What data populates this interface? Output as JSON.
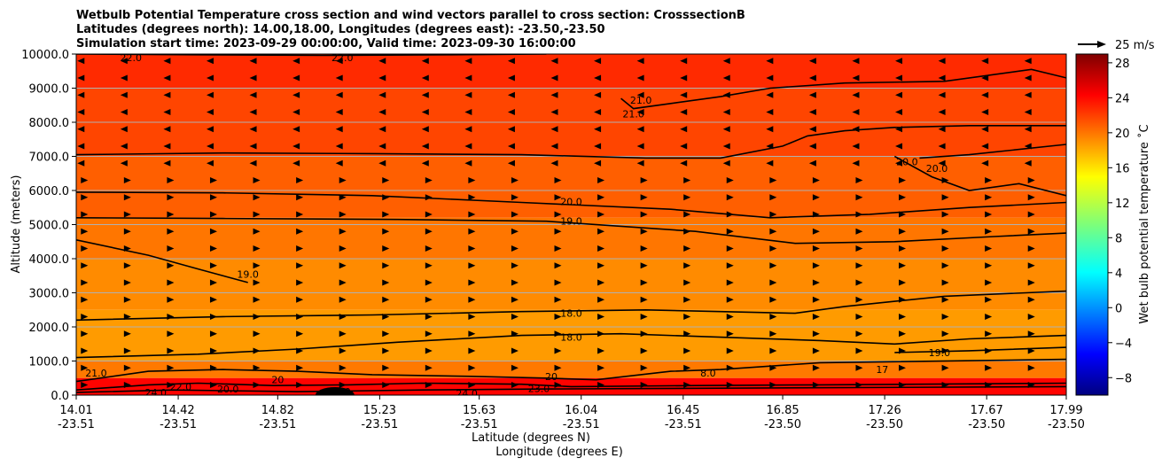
{
  "title": {
    "line1": "Wetbulb Potential Temperature cross section and wind vectors parallel to cross section: CrosssectionB",
    "line2": "Latitudes (degrees north): 14.00,18.00, Longitudes (degrees east): -23.50,-23.50",
    "line3": "Simulation start time: 2023-09-29 00:00:00, Valid time: 2023-09-30 16:00:00"
  },
  "chart_data": {
    "type": "heatmap",
    "title": "Wetbulb Potential Temperature cross section and wind vectors parallel to cross section: CrosssectionB",
    "xlabel": "Latitude (degrees N)",
    "xlabel2": "Longitude (degrees E)",
    "ylabel": "Altitude (meters)",
    "ylim": [
      0,
      10000
    ],
    "yticks": [
      "0.0",
      "1000.0",
      "2000.0",
      "3000.0",
      "4000.0",
      "5000.0",
      "6000.0",
      "7000.0",
      "8000.0",
      "9000.0",
      "10000.0"
    ],
    "xticks": [
      {
        "lat": "14.01",
        "lon": "-23.51"
      },
      {
        "lat": "14.42",
        "lon": "-23.51"
      },
      {
        "lat": "14.82",
        "lon": "-23.51"
      },
      {
        "lat": "15.23",
        "lon": "-23.51"
      },
      {
        "lat": "15.63",
        "lon": "-23.51"
      },
      {
        "lat": "16.04",
        "lon": "-23.51"
      },
      {
        "lat": "16.45",
        "lon": "-23.51"
      },
      {
        "lat": "16.85",
        "lon": "-23.50"
      },
      {
        "lat": "17.26",
        "lon": "-23.50"
      },
      {
        "lat": "17.67",
        "lon": "-23.50"
      },
      {
        "lat": "17.99",
        "lon": "-23.50"
      }
    ],
    "grid": "horizontal",
    "colorbar": {
      "label": "Wet bulb potential temperature ˚C",
      "ticks": [
        "28",
        "24",
        "20",
        "16",
        "12",
        "8",
        "4",
        "0",
        "−4",
        "−8"
      ],
      "range": [
        -10,
        29
      ],
      "colormap": "jet"
    },
    "quiver_key": {
      "label": "25 m/s",
      "speed": 25
    },
    "field_bands": [
      {
        "alt_from": 9000,
        "alt_to": 10000,
        "value": 22.5
      },
      {
        "alt_from": 7000,
        "alt_to": 9000,
        "value": 21.5
      },
      {
        "alt_from": 5200,
        "alt_to": 7000,
        "value": 20.5
      },
      {
        "alt_from": 4000,
        "alt_to": 5200,
        "value": 19.6
      },
      {
        "alt_from": 2500,
        "alt_to": 4000,
        "value": 18.8
      },
      {
        "alt_from": 1000,
        "alt_to": 2500,
        "value": 18.2
      },
      {
        "alt_from": 500,
        "alt_to": 1000,
        "value": 19.5
      },
      {
        "alt_from": 0,
        "alt_to": 500,
        "value": 24
      }
    ],
    "contours": [
      {
        "level": "22.0",
        "points": [
          [
            14.01,
            10000
          ],
          [
            14.5,
            9980
          ],
          [
            15.0,
            9960
          ],
          [
            15.5,
            9980
          ],
          [
            15.9,
            10000
          ]
        ]
      },
      {
        "level": "21.0",
        "points": [
          [
            16.2,
            8700
          ],
          [
            16.25,
            8400
          ],
          [
            16.4,
            8550
          ],
          [
            16.6,
            8750
          ],
          [
            16.8,
            9000
          ],
          [
            17.1,
            9150
          ],
          [
            17.5,
            9200
          ],
          [
            17.85,
            9550
          ],
          [
            17.99,
            9300
          ]
        ]
      },
      {
        "level": "20.0",
        "points": [
          [
            14.01,
            7050
          ],
          [
            14.6,
            7100
          ],
          [
            15.2,
            7080
          ],
          [
            15.8,
            7050
          ],
          [
            16.3,
            6950
          ],
          [
            16.6,
            6950
          ],
          [
            16.85,
            7300
          ],
          [
            16.95,
            7600
          ],
          [
            17.1,
            7750
          ],
          [
            17.3,
            7850
          ],
          [
            17.6,
            7900
          ],
          [
            17.99,
            7900
          ]
        ]
      },
      {
        "level": "20.0",
        "points": [
          [
            17.4,
            6950
          ],
          [
            17.6,
            7050
          ],
          [
            17.99,
            7350
          ]
        ]
      },
      {
        "level": "20.0",
        "points": [
          [
            17.3,
            7000
          ],
          [
            17.45,
            6400
          ],
          [
            17.6,
            6000
          ],
          [
            17.8,
            6200
          ],
          [
            17.99,
            5850
          ]
        ]
      },
      {
        "level": "20.0",
        "points": [
          [
            14.01,
            5950
          ],
          [
            14.6,
            5930
          ],
          [
            15.2,
            5850
          ],
          [
            15.8,
            5650
          ],
          [
            16.4,
            5450
          ],
          [
            16.8,
            5200
          ],
          [
            17.2,
            5300
          ],
          [
            17.6,
            5500
          ],
          [
            17.99,
            5650
          ]
        ]
      },
      {
        "level": "19.0",
        "points": [
          [
            14.01,
            5200
          ],
          [
            14.6,
            5180
          ],
          [
            15.3,
            5150
          ],
          [
            15.9,
            5100
          ],
          [
            16.5,
            4800
          ],
          [
            16.9,
            4450
          ],
          [
            17.3,
            4500
          ],
          [
            17.7,
            4650
          ],
          [
            17.99,
            4750
          ]
        ]
      },
      {
        "level": "19.0",
        "points": [
          [
            14.01,
            4550
          ],
          [
            14.3,
            4100
          ],
          [
            14.5,
            3700
          ],
          [
            14.7,
            3300
          ]
        ]
      },
      {
        "level": "18.0",
        "points": [
          [
            14.01,
            2200
          ],
          [
            14.6,
            2300
          ],
          [
            15.2,
            2350
          ],
          [
            15.8,
            2450
          ],
          [
            16.3,
            2500
          ],
          [
            16.6,
            2450
          ],
          [
            16.9,
            2400
          ],
          [
            17.1,
            2600
          ],
          [
            17.5,
            2900
          ],
          [
            17.99,
            3050
          ]
        ]
      },
      {
        "level": "18.0",
        "points": [
          [
            14.01,
            1100
          ],
          [
            14.5,
            1200
          ],
          [
            14.9,
            1350
          ],
          [
            15.3,
            1550
          ],
          [
            15.8,
            1750
          ],
          [
            16.2,
            1800
          ],
          [
            16.6,
            1700
          ],
          [
            17.0,
            1600
          ],
          [
            17.3,
            1500
          ],
          [
            17.6,
            1650
          ],
          [
            17.99,
            1750
          ]
        ]
      },
      {
        "level": "19.0",
        "points": [
          [
            17.3,
            1250
          ],
          [
            17.6,
            1300
          ],
          [
            17.99,
            1400
          ]
        ]
      },
      {
        "level": "20.0",
        "points": [
          [
            14.01,
            400
          ],
          [
            14.3,
            700
          ],
          [
            14.6,
            750
          ],
          [
            14.9,
            700
          ],
          [
            15.2,
            600
          ],
          [
            15.6,
            550
          ],
          [
            15.9,
            500
          ],
          [
            16.1,
            450
          ],
          [
            16.4,
            700
          ],
          [
            16.6,
            750
          ],
          [
            17.0,
            950
          ],
          [
            17.99,
            1050
          ]
        ]
      },
      {
        "level": "21.0",
        "points": [
          [
            14.01,
            150
          ],
          [
            14.3,
            300
          ],
          [
            14.5,
            350
          ],
          [
            14.8,
            280
          ],
          [
            15.1,
            300
          ],
          [
            15.4,
            350
          ],
          [
            15.8,
            320
          ],
          [
            16.0,
            250
          ],
          [
            16.5,
            280
          ],
          [
            17.0,
            300
          ],
          [
            17.99,
            350
          ]
        ]
      },
      {
        "level": "22.0",
        "points": [
          [
            14.01,
            80
          ],
          [
            14.4,
            150
          ],
          [
            14.9,
            100
          ],
          [
            15.4,
            150
          ],
          [
            15.9,
            180
          ],
          [
            16.5,
            200
          ],
          [
            17.99,
            250
          ]
        ]
      }
    ],
    "contour_labels": [
      {
        "text": "22.0",
        "lat": 14.23,
        "alt": 9900
      },
      {
        "text": "22.0",
        "lat": 15.08,
        "alt": 9900
      },
      {
        "text": "21.0",
        "lat": 16.28,
        "alt": 8650
      },
      {
        "text": "21.0",
        "lat": 16.25,
        "alt": 8250
      },
      {
        "text": "20.0",
        "lat": 17.35,
        "alt": 6850
      },
      {
        "text": "20.0",
        "lat": 17.47,
        "alt": 6650
      },
      {
        "text": "20.0",
        "lat": 16.0,
        "alt": 5670
      },
      {
        "text": "19.0",
        "lat": 16.0,
        "alt": 5100
      },
      {
        "text": "19.0",
        "lat": 14.7,
        "alt": 3550
      },
      {
        "text": "18.0",
        "lat": 16.0,
        "alt": 2400
      },
      {
        "text": "18.0",
        "lat": 16.0,
        "alt": 1700
      },
      {
        "text": "19.0",
        "lat": 17.48,
        "alt": 1250
      },
      {
        "text": "8.0",
        "lat": 16.55,
        "alt": 650
      },
      {
        "text": "17",
        "lat": 17.25,
        "alt": 750
      },
      {
        "text": "20",
        "lat": 15.92,
        "alt": 550
      },
      {
        "text": "21.0",
        "lat": 14.09,
        "alt": 650
      },
      {
        "text": "20",
        "lat": 14.82,
        "alt": 450
      },
      {
        "text": "20.0",
        "lat": 14.62,
        "alt": 180
      },
      {
        "text": "22.0",
        "lat": 14.43,
        "alt": 250
      },
      {
        "text": "22.0",
        "lat": 15.07,
        "alt": 100
      },
      {
        "text": "24.0",
        "lat": 15.58,
        "alt": 50
      },
      {
        "text": "23.0",
        "lat": 15.87,
        "alt": 200
      },
      {
        "text": "24.0",
        "lat": 14.33,
        "alt": 80
      }
    ],
    "wind_pattern": [
      {
        "alt_from": 6700,
        "alt_to": 10000,
        "direction": "west"
      },
      {
        "alt_from": 0,
        "alt_to": 6700,
        "direction": "east"
      }
    ]
  }
}
